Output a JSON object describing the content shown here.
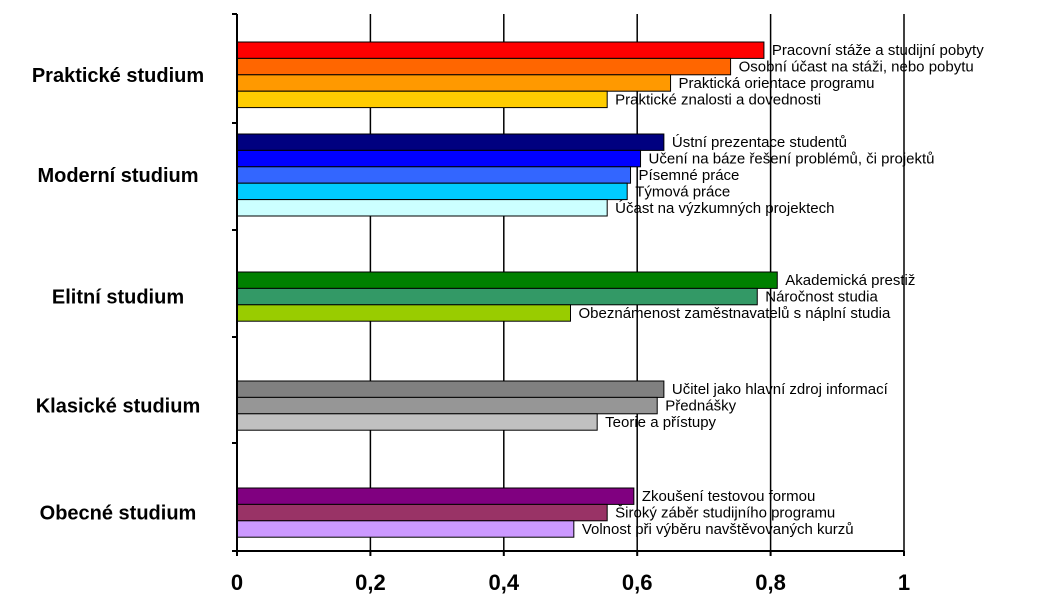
{
  "chart_data": {
    "type": "bar",
    "orientation": "horizontal",
    "title": "",
    "xlabel": "",
    "ylabel": "",
    "xlim": [
      0,
      1
    ],
    "xticks": [
      "0",
      "0,2",
      "0,4",
      "0,6",
      "0,8",
      "1"
    ],
    "grid": "vertical",
    "legend": "none",
    "groups": [
      {
        "name": "Praktické studium",
        "bars": [
          {
            "label": "Pracovní stáže a studijní pobyty",
            "value": 0.79,
            "color": "#ff0000"
          },
          {
            "label": "Osobní účast na stáži, nebo pobytu",
            "value": 0.74,
            "color": "#ff6600"
          },
          {
            "label": "Praktická orientace programu",
            "value": 0.65,
            "color": "#ff9900"
          },
          {
            "label": "Praktické znalosti a dovednosti",
            "value": 0.555,
            "color": "#ffcc00"
          }
        ]
      },
      {
        "name": "Moderní studium",
        "bars": [
          {
            "label": "Ústní prezentace studentů",
            "value": 0.64,
            "color": "#000080"
          },
          {
            "label": "Učení na báze řešení problémů, či projektů",
            "value": 0.605,
            "color": "#0000ff"
          },
          {
            "label": "Písemné práce",
            "value": 0.59,
            "color": "#3366ff"
          },
          {
            "label": "Týmová práce",
            "value": 0.585,
            "color": "#00ccff"
          },
          {
            "label": "Účast na výzkumných projektech",
            "value": 0.555,
            "color": "#ccffff"
          }
        ]
      },
      {
        "name": "Elitní studium",
        "bars": [
          {
            "label": "Akademická prestiž",
            "value": 0.81,
            "color": "#008000"
          },
          {
            "label": "Náročnost studia",
            "value": 0.78,
            "color": "#339966"
          },
          {
            "label": "Obeznámenost zaměstnavatelů s náplní studia",
            "value": 0.5,
            "color": "#99cc00"
          }
        ]
      },
      {
        "name": "Klasické studium",
        "bars": [
          {
            "label": "Učitel jako hlavní zdroj informací",
            "value": 0.64,
            "color": "#808080"
          },
          {
            "label": "Přednášky",
            "value": 0.63,
            "color": "#969696"
          },
          {
            "label": "Teorie a přístupy",
            "value": 0.54,
            "color": "#c0c0c0"
          }
        ]
      },
      {
        "name": "Obecné studium",
        "bars": [
          {
            "label": "Zkoušení testovou formou",
            "value": 0.595,
            "color": "#800080"
          },
          {
            "label": "Široký záběr studijního programu",
            "value": 0.555,
            "color": "#993366"
          },
          {
            "label": "Volnost při výběru navštěvovaných kurzů",
            "value": 0.505,
            "color": "#cc99ff"
          }
        ]
      }
    ]
  }
}
